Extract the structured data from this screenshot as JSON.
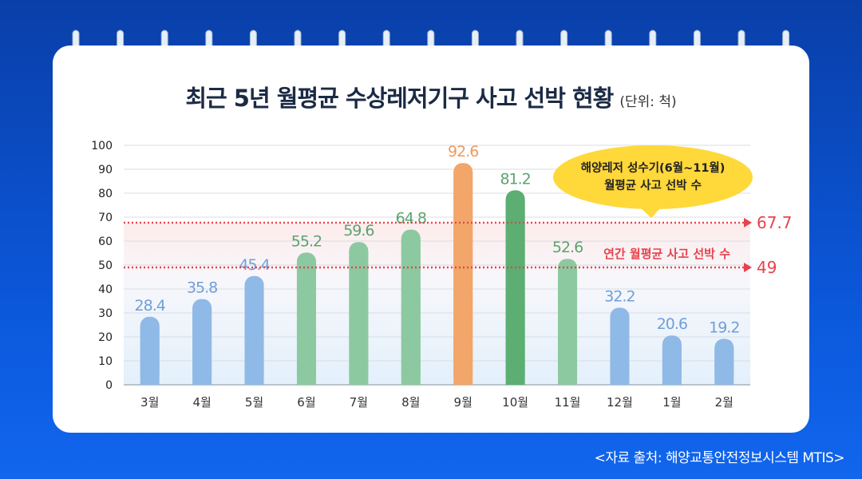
{
  "title": "최근 5년 월평균 수상레저기구 사고 선박 현황",
  "unit": "(단위: 척)",
  "source": "<자료 출처: 해양교통안전정보시스템 MTIS>",
  "callout": {
    "line1": "해양레저 성수기(6월~11월)",
    "line2": "월평균 사고 선박 수"
  },
  "colors": {
    "off_season": "#8fb9e6",
    "peak_season": "#8cc9a0",
    "peak_month": "#f2a66a",
    "peak_dark": "#5cae72",
    "ref_line": "#e8424d",
    "callout": "#ffd83a"
  },
  "chart_data": {
    "type": "bar",
    "categories": [
      "3월",
      "4월",
      "5월",
      "6월",
      "7월",
      "8월",
      "9월",
      "10월",
      "11월",
      "12월",
      "1월",
      "2월"
    ],
    "values": [
      28.4,
      35.8,
      45.4,
      55.2,
      59.6,
      64.8,
      92.6,
      81.2,
      52.6,
      32.2,
      20.6,
      19.2
    ],
    "ylim": [
      0,
      100
    ],
    "yticks": [
      0,
      10,
      20,
      30,
      40,
      50,
      60,
      70,
      80,
      90,
      100
    ],
    "reference_lines": [
      {
        "value": 67.7,
        "label": "67.7",
        "text": ""
      },
      {
        "value": 49,
        "label": "49",
        "text": "연간 월평균 사고 선박 수"
      }
    ],
    "grid": true
  }
}
